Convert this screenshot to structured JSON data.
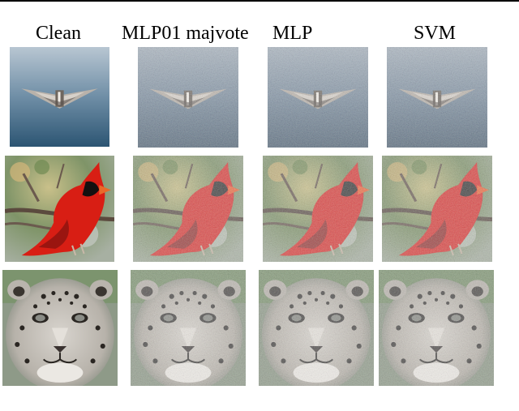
{
  "figure": {
    "columns": [
      {
        "label": "Clean"
      },
      {
        "label": "MLP01 majvote"
      },
      {
        "label": "MLP"
      },
      {
        "label": "SVM"
      }
    ],
    "rows": [
      {
        "subject": "airplane",
        "colors": {
          "sky_top": "#aebdcc",
          "sky_bottom": "#2f5a78",
          "plane": "#b9b2aa"
        }
      },
      {
        "subject": "cardinal-bird",
        "colors": {
          "bird": "#d81e14",
          "mask": "#141010",
          "beak": "#e86a2a",
          "background": "#8aa07a"
        }
      },
      {
        "subject": "snow-leopard",
        "colors": {
          "fur": "#c8c4be",
          "spots": "#2a2622",
          "background": "#8e9a88"
        }
      }
    ]
  }
}
